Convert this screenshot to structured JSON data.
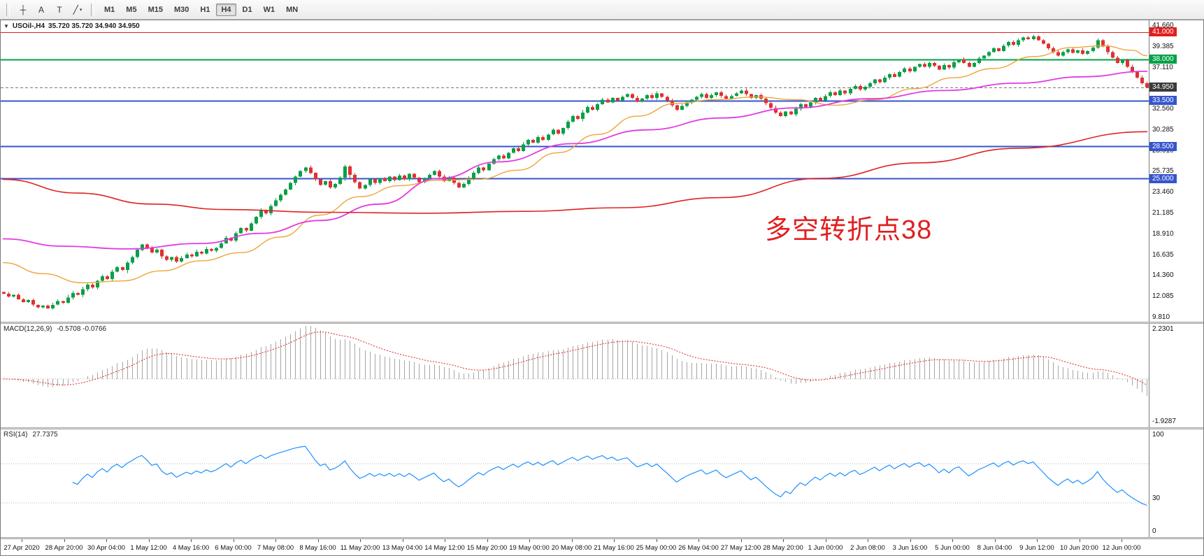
{
  "toolbar": {
    "tools": [
      {
        "label": "┼",
        "name": "crosshair-tool"
      },
      {
        "label": "A",
        "name": "text-tool"
      },
      {
        "label": "T",
        "name": "label-tool"
      },
      {
        "label": "╱",
        "name": "trendline-tool",
        "caret": "▾"
      }
    ],
    "timeframes": [
      {
        "label": "M1"
      },
      {
        "label": "M5"
      },
      {
        "label": "M15"
      },
      {
        "label": "M30"
      },
      {
        "label": "H1"
      },
      {
        "label": "H4",
        "active": true
      },
      {
        "label": "D1"
      },
      {
        "label": "W1"
      },
      {
        "label": "MN"
      }
    ]
  },
  "chart_header": {
    "collapse_icon": "▼",
    "title": "USOil-,H4",
    "ohlc": "35.720 35.720 34.940 34.950"
  },
  "annotation": {
    "text": "多空转折点38",
    "color": "#e02020"
  },
  "indicators": {
    "macd": {
      "title": "MACD(12,26,9)",
      "values": "-0.5708 -0.0766"
    },
    "rsi": {
      "title": "RSI(14)",
      "values": "27.7375"
    }
  },
  "colors": {
    "bid_badge": "#3a3a3a",
    "macd_histogram": "#a6a6a6",
    "macd_signal": "#e02222",
    "rsi_line": "#1e90ff",
    "grid_dotted": "#b4b4b4"
  },
  "chart_data": {
    "type": "candlestick",
    "symbol": "USOil-",
    "timeframe": "H4",
    "bid": 34.95,
    "candle_up": "#0aa048",
    "candle_down": "#e03131",
    "first_open": 12.6,
    "closes": [
      12.4,
      12.1,
      12.3,
      11.8,
      11.5,
      11.7,
      11.2,
      10.9,
      11.1,
      10.8,
      11.2,
      11.6,
      11.4,
      12.0,
      12.5,
      12.3,
      12.9,
      13.4,
      13.1,
      13.8,
      14.3,
      14.0,
      14.8,
      15.3,
      15.0,
      15.8,
      16.4,
      17.2,
      17.8,
      17.4,
      16.9,
      17.2,
      16.5,
      16.1,
      16.4,
      15.9,
      16.3,
      16.7,
      16.5,
      17.0,
      16.8,
      17.3,
      17.1,
      17.4,
      17.9,
      18.5,
      18.2,
      19.0,
      19.6,
      19.3,
      20.1,
      20.8,
      21.5,
      21.2,
      22.0,
      22.6,
      23.2,
      23.8,
      24.5,
      25.2,
      25.8,
      26.2,
      25.6,
      24.9,
      24.3,
      24.7,
      24.0,
      24.4,
      25.1,
      26.3,
      25.4,
      24.6,
      23.9,
      24.3,
      24.9,
      24.5,
      25.0,
      24.7,
      25.2,
      24.8,
      25.3,
      24.9,
      25.5,
      25.1,
      24.6,
      25.0,
      25.4,
      25.8,
      25.2,
      24.7,
      25.1,
      24.5,
      24.0,
      24.4,
      25.0,
      25.6,
      26.2,
      25.9,
      26.6,
      27.1,
      27.5,
      27.2,
      27.8,
      28.3,
      28.0,
      28.7,
      29.2,
      28.9,
      29.5,
      29.2,
      29.8,
      30.3,
      29.9,
      30.5,
      31.2,
      31.8,
      31.5,
      32.2,
      32.8,
      32.5,
      33.1,
      33.6,
      33.3,
      33.8,
      33.5,
      33.9,
      34.2,
      33.8,
      33.4,
      33.7,
      34.1,
      33.8,
      34.3,
      33.9,
      33.5,
      33.0,
      32.5,
      32.9,
      33.3,
      33.6,
      33.9,
      34.2,
      33.8,
      34.1,
      34.4,
      34.0,
      33.7,
      34.0,
      34.3,
      34.6,
      34.2,
      33.8,
      34.1,
      33.7,
      33.2,
      32.7,
      32.2,
      31.8,
      32.3,
      32.0,
      32.6,
      33.1,
      32.8,
      33.3,
      33.8,
      33.5,
      34.0,
      34.4,
      34.1,
      34.6,
      34.3,
      34.8,
      35.1,
      34.7,
      35.0,
      35.4,
      35.8,
      35.5,
      36.0,
      36.4,
      36.1,
      36.6,
      37.0,
      36.7,
      37.2,
      37.5,
      37.2,
      37.6,
      37.3,
      36.9,
      37.4,
      37.1,
      37.7,
      38.0,
      37.6,
      37.2,
      37.6,
      38.1,
      38.4,
      38.8,
      39.2,
      38.9,
      39.5,
      39.9,
      39.6,
      40.1,
      40.4,
      40.2,
      40.5,
      40.1,
      39.7,
      39.2,
      38.8,
      38.4,
      38.8,
      39.1,
      38.7,
      39.0,
      38.6,
      38.9,
      39.3,
      40.1,
      39.4,
      38.8,
      38.2,
      37.6,
      37.9,
      37.2,
      36.6,
      36.0,
      35.4,
      34.95
    ],
    "price_ticks": [
      41.66,
      39.385,
      37.11,
      34.835,
      32.56,
      30.285,
      28.01,
      25.735,
      23.46,
      21.185,
      18.91,
      16.635,
      14.36,
      12.085,
      9.81
    ],
    "levels": [
      {
        "price": 41.0,
        "color": "#e01f1f",
        "width": 1
      },
      {
        "price": 38.0,
        "color": "#00a245",
        "width": 2
      },
      {
        "price": 33.5,
        "color": "#3554cd",
        "width": 2
      },
      {
        "price": 28.5,
        "color": "#3554cd",
        "width": 2
      },
      {
        "price": 25.0,
        "color": "#3554cd",
        "width": 2
      }
    ],
    "moving_averages": [
      {
        "name": "fast-orange",
        "color": "#eda53b",
        "width": 1.4,
        "points": [
          [
            0,
            15.8
          ],
          [
            8,
            14.6
          ],
          [
            16,
            13.6
          ],
          [
            24,
            13.8
          ],
          [
            32,
            14.9
          ],
          [
            40,
            16.0
          ],
          [
            48,
            16.9
          ],
          [
            56,
            18.6
          ],
          [
            64,
            21.0
          ],
          [
            72,
            23.0
          ],
          [
            80,
            24.2
          ],
          [
            88,
            24.8
          ],
          [
            96,
            24.9
          ],
          [
            104,
            25.9
          ],
          [
            112,
            27.8
          ],
          [
            120,
            29.8
          ],
          [
            128,
            31.8
          ],
          [
            136,
            33.2
          ],
          [
            144,
            33.6
          ],
          [
            152,
            33.9
          ],
          [
            160,
            33.6
          ],
          [
            168,
            33.0
          ],
          [
            176,
            33.6
          ],
          [
            184,
            34.8
          ],
          [
            192,
            36.0
          ],
          [
            200,
            37.0
          ],
          [
            208,
            38.3
          ],
          [
            216,
            39.3
          ],
          [
            222,
            39.5
          ],
          [
            228,
            39.0
          ],
          [
            231,
            38.4
          ]
        ]
      },
      {
        "name": "mid-magenta",
        "color": "#e23be2",
        "width": 1.8,
        "points": [
          [
            0,
            18.4
          ],
          [
            12,
            17.6
          ],
          [
            25,
            17.3
          ],
          [
            40,
            17.9
          ],
          [
            52,
            19.0
          ],
          [
            64,
            20.4
          ],
          [
            76,
            22.2
          ],
          [
            88,
            25.0
          ],
          [
            100,
            26.8
          ],
          [
            115,
            28.8
          ],
          [
            130,
            30.3
          ],
          [
            145,
            31.6
          ],
          [
            160,
            32.7
          ],
          [
            175,
            33.7
          ],
          [
            190,
            34.6
          ],
          [
            205,
            35.4
          ],
          [
            218,
            36.1
          ],
          [
            231,
            36.7
          ]
        ]
      },
      {
        "name": "slow-red",
        "color": "#e02222",
        "width": 1.6,
        "points": [
          [
            0,
            24.9
          ],
          [
            15,
            23.4
          ],
          [
            30,
            22.2
          ],
          [
            45,
            21.6
          ],
          [
            65,
            21.3
          ],
          [
            85,
            21.2
          ],
          [
            105,
            21.4
          ],
          [
            125,
            21.8
          ],
          [
            145,
            22.9
          ],
          [
            165,
            25.0
          ],
          [
            185,
            26.7
          ],
          [
            205,
            28.3
          ],
          [
            231,
            30.1
          ]
        ]
      }
    ],
    "time_labels": [
      "27 Apr 2020",
      "28 Apr 20:00",
      "30 Apr 04:00",
      "1 May 12:00",
      "4 May 16:00",
      "6 May 00:00",
      "7 May 08:00",
      "8 May 16:00",
      "11 May 20:00",
      "13 May 04:00",
      "14 May 12:00",
      "15 May 20:00",
      "19 May 00:00",
      "20 May 08:00",
      "21 May 16:00",
      "25 May 00:00",
      "26 May 04:00",
      "27 May 12:00",
      "28 May 20:00",
      "1 Jun 00:00",
      "2 Jun 08:00",
      "3 Jun 16:00",
      "5 Jun 00:00",
      "8 Jun 04:00",
      "9 Jun 12:00",
      "10 Jun 20:00",
      "12 Jun 00:00"
    ],
    "macd": {
      "params": [
        12,
        26,
        9
      ],
      "scale_max_label": "2.2301",
      "scale_min_label": "-1.9287"
    },
    "rsi": {
      "period": 14,
      "levels": [
        70,
        30
      ],
      "scale_labels": [
        "100",
        "30",
        "0"
      ]
    }
  }
}
